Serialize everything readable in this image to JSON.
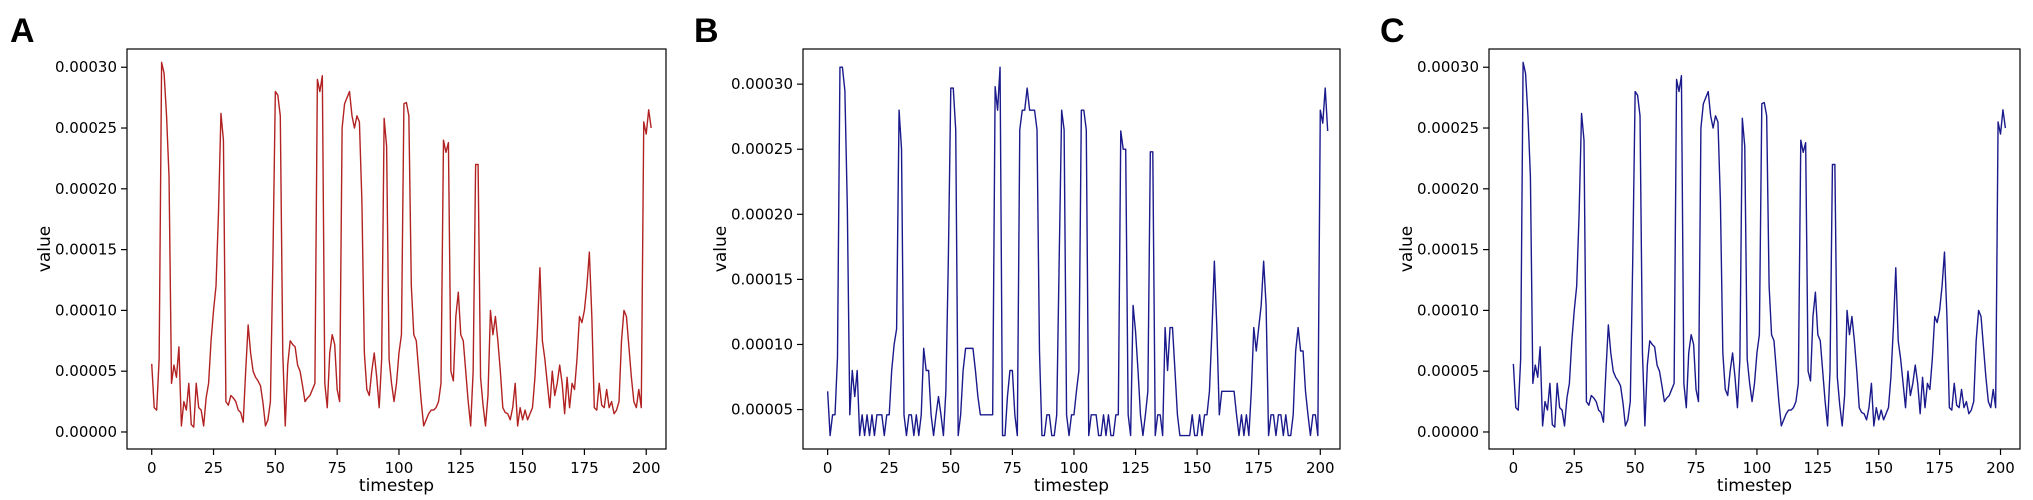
{
  "chart_data": [
    {
      "panel": "A",
      "type": "line",
      "xlabel": "timestep",
      "ylabel": "value",
      "xlim": [
        -10,
        208
      ],
      "ylim": [
        -1.4e-05,
        0.000315
      ],
      "xticks": [
        0,
        25,
        50,
        75,
        100,
        125,
        150,
        175,
        200
      ],
      "xtick_labels": [
        "0",
        "25",
        "50",
        "75",
        "100",
        "125",
        "150",
        "175",
        "200"
      ],
      "yticks": [
        0,
        5e-05,
        0.0001,
        0.00015,
        0.0002,
        0.00025,
        0.0003
      ],
      "ytick_labels": [
        "0.00000",
        "0.00005",
        "0.00010",
        "0.00015",
        "0.00020",
        "0.00025",
        "0.00030"
      ],
      "color": "#b22222",
      "series": [
        {
          "values": [
            5.6e-05,
            2e-05,
            1.8e-05,
            6e-05,
            0.000304,
            0.000295,
            0.00026,
            0.00021,
            4e-05,
            5.5e-05,
            4.5e-05,
            7e-05,
            5e-06,
            2.5e-05,
            1.8e-05,
            4e-05,
            6e-06,
            4e-06,
            4e-05,
            2e-05,
            1.8e-05,
            5e-06,
            2.8e-05,
            4e-05,
            7.5e-05,
            0.0001,
            0.00012,
            0.00018,
            0.000262,
            0.00024,
            2.5e-05,
            2.2e-05,
            3e-05,
            2.8e-05,
            2.5e-05,
            1.8e-05,
            1.6e-05,
            8e-06,
            5e-05,
            8.8e-05,
            6.5e-05,
            5e-05,
            4.5e-05,
            4.2e-05,
            3.8e-05,
            2.4e-05,
            5e-06,
            1e-05,
            2.5e-05,
            0.00014,
            0.00028,
            0.000277,
            0.00026,
            6.5e-05,
            5e-06,
            5.5e-05,
            7.5e-05,
            7.2e-05,
            7e-05,
            5.5e-05,
            5e-05,
            3.8e-05,
            2.5e-05,
            2.8e-05,
            3e-05,
            3.5e-05,
            4e-05,
            0.00029,
            0.00028,
            0.000293,
            4e-05,
            2e-05,
            6.5e-05,
            8e-05,
            7.2e-05,
            3.5e-05,
            2.5e-05,
            0.00025,
            0.00027,
            0.000275,
            0.00028,
            0.00026,
            0.00025,
            0.00026,
            0.000255,
            0.00019,
            6.5e-05,
            3.5e-05,
            3e-05,
            5e-05,
            6.5e-05,
            4.5e-05,
            2e-05,
            6e-05,
            0.000258,
            0.000235,
            6e-05,
            4e-05,
            2.5e-05,
            4e-05,
            6.5e-05,
            8e-05,
            0.00027,
            0.000271,
            0.00026,
            0.00012,
            8e-05,
            7.5e-05,
            5e-05,
            2.5e-05,
            5e-06,
            1e-05,
            1.5e-05,
            1.8e-05,
            1.8e-05,
            2e-05,
            2.5e-05,
            4e-05,
            0.00024,
            0.00023,
            0.000238,
            5e-05,
            4.2e-05,
            9.5e-05,
            0.000115,
            8e-05,
            7.5e-05,
            5e-05,
            2.5e-05,
            5e-06,
            5e-05,
            0.00022,
            0.00022,
            4.5e-05,
            2.2e-05,
            5e-06,
            3e-05,
            0.0001,
            8e-05,
            9.5e-05,
            7.5e-05,
            5e-05,
            2e-05,
            1.6e-05,
            1.5e-05,
            1e-05,
            2e-05,
            4e-05,
            5e-06,
            2e-05,
            1e-05,
            1.8e-05,
            1e-05,
            1.5e-05,
            2e-05,
            4.5e-05,
            8.5e-05,
            0.000135,
            7.5e-05,
            6e-05,
            4e-05,
            2e-05,
            5e-05,
            3e-05,
            4e-05,
            5.5e-05,
            4e-05,
            1.5e-05,
            4.5e-05,
            2e-05,
            4e-05,
            3.5e-05,
            6e-05,
            9.5e-05,
            9e-05,
            0.0001,
            0.00012,
            0.000148,
            9.5e-05,
            2e-05,
            1.8e-05,
            4e-05,
            2.2e-05,
            2e-05,
            3.5e-05,
            2e-05,
            2.5e-05,
            1.5e-05,
            1.8e-05,
            2.5e-05,
            7.5e-05,
            0.0001,
            9.5e-05,
            7e-05,
            4.5e-05,
            2.5e-05,
            2e-05,
            3.5e-05,
            2e-05,
            0.000255,
            0.000245,
            0.000265,
            0.00025
          ]
        }
      ]
    },
    {
      "panel": "B",
      "type": "line",
      "xlabel": "timestep",
      "ylabel": "value",
      "xlim": [
        -10,
        208
      ],
      "ylim": [
        1.97e-05,
        0.000327
      ],
      "xticks": [
        0,
        25,
        50,
        75,
        100,
        125,
        150,
        175,
        200
      ],
      "xtick_labels": [
        "0",
        "25",
        "50",
        "75",
        "100",
        "125",
        "150",
        "175",
        "200"
      ],
      "yticks": [
        5e-05,
        0.0001,
        0.00015,
        0.0002,
        0.00025,
        0.0003
      ],
      "ytick_labels": [
        "0.00005",
        "0.00010",
        "0.00015",
        "0.00020",
        "0.00025",
        "0.00030"
      ],
      "color": "#1a1a8c",
      "series": [
        {
          "values": [
            6.4e-05,
            3e-05,
            4.6e-05,
            4.6e-05,
            9e-05,
            0.000313,
            0.000313,
            0.000295,
            0.000205,
            4.6e-05,
            8e-05,
            6e-05,
            8e-05,
            3e-05,
            4.6e-05,
            3e-05,
            4.6e-05,
            3e-05,
            4.6e-05,
            3e-05,
            4.6e-05,
            4.6e-05,
            4.6e-05,
            3e-05,
            4.6e-05,
            4.6e-05,
            8e-05,
            0.0001,
            0.000112,
            0.00028,
            0.00025,
            4.6e-05,
            3e-05,
            4.6e-05,
            4.6e-05,
            3e-05,
            4.6e-05,
            3e-05,
            4.6e-05,
            9.7e-05,
            8e-05,
            8e-05,
            4.6e-05,
            3e-05,
            4.6e-05,
            6e-05,
            4.6e-05,
            3e-05,
            6.4e-05,
            0.000165,
            0.000297,
            0.000297,
            0.000265,
            3e-05,
            4.6e-05,
            8e-05,
            9.7e-05,
            9.7e-05,
            9.7e-05,
            9.7e-05,
            8e-05,
            6e-05,
            4.6e-05,
            4.6e-05,
            4.6e-05,
            4.6e-05,
            4.6e-05,
            4.6e-05,
            0.000298,
            0.00028,
            0.000313,
            3e-05,
            3e-05,
            6e-05,
            8e-05,
            8e-05,
            4.6e-05,
            3e-05,
            0.000265,
            0.00028,
            0.00028,
            0.000297,
            0.00028,
            0.00028,
            0.00028,
            0.000265,
            9.5e-05,
            3e-05,
            3e-05,
            4.6e-05,
            4.6e-05,
            3e-05,
            3e-05,
            4.6e-05,
            0.000165,
            0.00028,
            0.000265,
            4.6e-05,
            3e-05,
            4.6e-05,
            4.6e-05,
            6.4e-05,
            8e-05,
            0.00028,
            0.00028,
            0.000265,
            3e-05,
            4.6e-05,
            4.6e-05,
            4.6e-05,
            3e-05,
            3e-05,
            4.6e-05,
            3e-05,
            4.6e-05,
            3e-05,
            3e-05,
            4.6e-05,
            4.6e-05,
            0.000264,
            0.00025,
            0.00025,
            4.6e-05,
            3e-05,
            0.00013,
            0.00011,
            8e-05,
            4.6e-05,
            3e-05,
            4.6e-05,
            6.4e-05,
            0.000248,
            0.000248,
            3e-05,
            4.6e-05,
            4.6e-05,
            3e-05,
            0.000113,
            8e-05,
            0.000113,
            0.000113,
            8e-05,
            4.6e-05,
            3e-05,
            3e-05,
            3e-05,
            3e-05,
            3e-05,
            4.6e-05,
            3e-05,
            3e-05,
            4.6e-05,
            3e-05,
            4.6e-05,
            4.6e-05,
            6.4e-05,
            0.00011,
            0.000164,
            0.000113,
            4.6e-05,
            6.4e-05,
            6.4e-05,
            6.4e-05,
            6.4e-05,
            6.4e-05,
            6.4e-05,
            4.6e-05,
            3e-05,
            4.6e-05,
            3e-05,
            4.6e-05,
            3e-05,
            6.4e-05,
            0.000113,
            9.5e-05,
            0.000113,
            0.00013,
            0.000164,
            0.00013,
            3e-05,
            4.6e-05,
            4.6e-05,
            3e-05,
            4.6e-05,
            4.6e-05,
            3e-05,
            4.6e-05,
            3e-05,
            3e-05,
            4.6e-05,
            9.5e-05,
            0.000113,
            9.5e-05,
            9.5e-05,
            6.4e-05,
            4.6e-05,
            3e-05,
            4.6e-05,
            4.6e-05,
            3e-05,
            0.00028,
            0.00027,
            0.000297,
            0.000264
          ]
        }
      ]
    },
    {
      "panel": "C",
      "type": "line",
      "xlabel": "timestep",
      "ylabel": "value",
      "xlim": [
        -10,
        208
      ],
      "ylim": [
        -1.4e-05,
        0.000315
      ],
      "xticks": [
        0,
        25,
        50,
        75,
        100,
        125,
        150,
        175,
        200
      ],
      "xtick_labels": [
        "0",
        "25",
        "50",
        "75",
        "100",
        "125",
        "150",
        "175",
        "200"
      ],
      "yticks": [
        0,
        5e-05,
        0.0001,
        0.00015,
        0.0002,
        0.00025,
        0.0003
      ],
      "ytick_labels": [
        "0.00000",
        "0.00005",
        "0.00010",
        "0.00015",
        "0.00020",
        "0.00025",
        "0.00030"
      ],
      "color": "#1a1a8c",
      "series": [
        {
          "values": [
            5.6e-05,
            2e-05,
            1.8e-05,
            6e-05,
            0.000304,
            0.000295,
            0.00026,
            0.00021,
            4e-05,
            5.5e-05,
            4.5e-05,
            7e-05,
            5e-06,
            2.5e-05,
            1.8e-05,
            4e-05,
            6e-06,
            4e-06,
            4e-05,
            2e-05,
            1.8e-05,
            5e-06,
            2.8e-05,
            4e-05,
            7.5e-05,
            0.0001,
            0.00012,
            0.00018,
            0.000262,
            0.00024,
            2.5e-05,
            2.2e-05,
            3e-05,
            2.8e-05,
            2.5e-05,
            1.8e-05,
            1.6e-05,
            8e-06,
            5e-05,
            8.8e-05,
            6.5e-05,
            5e-05,
            4.5e-05,
            4.2e-05,
            3.8e-05,
            2.4e-05,
            5e-06,
            1e-05,
            2.5e-05,
            0.00014,
            0.00028,
            0.000277,
            0.00026,
            6.5e-05,
            5e-06,
            5.5e-05,
            7.5e-05,
            7.2e-05,
            7e-05,
            5.5e-05,
            5e-05,
            3.8e-05,
            2.5e-05,
            2.8e-05,
            3e-05,
            3.5e-05,
            4e-05,
            0.00029,
            0.00028,
            0.000293,
            4e-05,
            2e-05,
            6.5e-05,
            8e-05,
            7.2e-05,
            3.5e-05,
            2.5e-05,
            0.00025,
            0.00027,
            0.000275,
            0.00028,
            0.00026,
            0.00025,
            0.00026,
            0.000255,
            0.00019,
            6.5e-05,
            3.5e-05,
            3e-05,
            5e-05,
            6.5e-05,
            4.5e-05,
            2e-05,
            6e-05,
            0.000258,
            0.000235,
            6e-05,
            4e-05,
            2.5e-05,
            4e-05,
            6.5e-05,
            8e-05,
            0.00027,
            0.000271,
            0.00026,
            0.00012,
            8e-05,
            7.5e-05,
            5e-05,
            2.5e-05,
            5e-06,
            1e-05,
            1.5e-05,
            1.8e-05,
            1.8e-05,
            2e-05,
            2.5e-05,
            4e-05,
            0.00024,
            0.00023,
            0.000238,
            5e-05,
            4.2e-05,
            9.5e-05,
            0.000115,
            8e-05,
            7.5e-05,
            5e-05,
            2.5e-05,
            5e-06,
            5e-05,
            0.00022,
            0.00022,
            4.5e-05,
            2.2e-05,
            5e-06,
            3e-05,
            0.0001,
            8e-05,
            9.5e-05,
            7.5e-05,
            5e-05,
            2e-05,
            1.6e-05,
            1.5e-05,
            1e-05,
            2e-05,
            4e-05,
            5e-06,
            2e-05,
            1e-05,
            1.8e-05,
            1e-05,
            1.5e-05,
            2e-05,
            4.5e-05,
            8.5e-05,
            0.000135,
            7.5e-05,
            6e-05,
            4e-05,
            2e-05,
            5e-05,
            3e-05,
            4e-05,
            5.5e-05,
            4e-05,
            1.5e-05,
            4.5e-05,
            2e-05,
            4e-05,
            3.5e-05,
            6e-05,
            9.5e-05,
            9e-05,
            0.0001,
            0.00012,
            0.000148,
            9.5e-05,
            2e-05,
            1.8e-05,
            4e-05,
            2.2e-05,
            2e-05,
            3.5e-05,
            2e-05,
            2.5e-05,
            1.5e-05,
            1.8e-05,
            2.5e-05,
            7.5e-05,
            0.0001,
            9.5e-05,
            7e-05,
            4.5e-05,
            2.5e-05,
            2e-05,
            3.5e-05,
            2e-05,
            0.000255,
            0.000245,
            0.000265,
            0.00025
          ]
        }
      ]
    }
  ]
}
